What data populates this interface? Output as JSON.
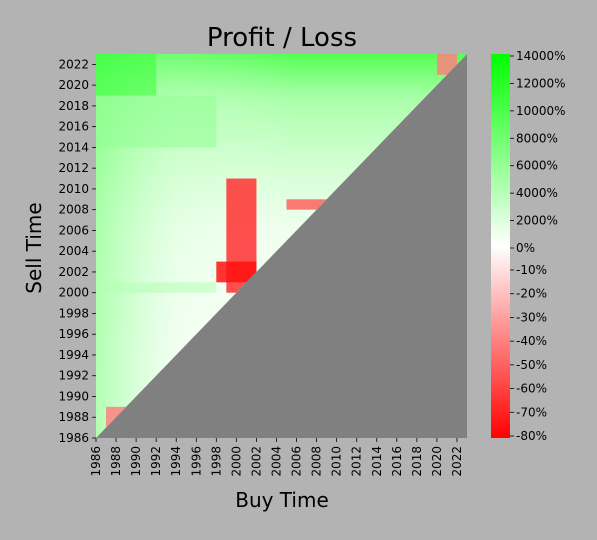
{
  "chart_data": {
    "type": "heatmap",
    "title": "Profit / Loss",
    "xlabel": "Buy Time",
    "ylabel": "Sell Time",
    "x_range": [
      1986,
      2023
    ],
    "y_range": [
      1986,
      2023
    ],
    "x_ticks": [
      "1986",
      "1988",
      "1990",
      "1992",
      "1994",
      "1996",
      "1998",
      "2000",
      "2002",
      "2004",
      "2006",
      "2008",
      "2010",
      "2012",
      "2014",
      "2016",
      "2018",
      "2020",
      "2022"
    ],
    "y_ticks": [
      "1986",
      "1988",
      "1990",
      "1992",
      "1994",
      "1996",
      "1998",
      "2000",
      "2002",
      "2004",
      "2006",
      "2008",
      "2010",
      "2012",
      "2014",
      "2016",
      "2018",
      "2020",
      "2022"
    ],
    "colorbar": {
      "ticks_upper": [
        "14000%",
        "12000%",
        "10000%",
        "8000%",
        "6000%",
        "4000%",
        "2000%",
        "0%"
      ],
      "ticks_lower": [
        "-10%",
        "-20%",
        "-30%",
        "-40%",
        "-50%",
        "-60%",
        "-70%",
        "-80%"
      ],
      "max_percent": 14000,
      "min_percent": -80
    },
    "colors": {
      "background": "#b3b3b3",
      "undefined_region": "#808080",
      "profit_max": "#00ff00",
      "neutral": "#ffffff",
      "loss_max": "#ff0000"
    },
    "regions": [
      {
        "buy": [
          1986,
          1992
        ],
        "sell": [
          2019,
          2023
        ],
        "value_percent": 9000
      },
      {
        "buy": [
          1986,
          1998
        ],
        "sell": [
          2014,
          2019
        ],
        "value_percent": 3000
      },
      {
        "buy": [
          1986,
          1998
        ],
        "sell": [
          2000,
          2001
        ],
        "value_percent": 1500
      },
      {
        "buy": [
          1999,
          2002
        ],
        "sell": [
          2000,
          2011
        ],
        "value_percent": -65
      },
      {
        "buy": [
          1998,
          2002
        ],
        "sell": [
          2001,
          2003
        ],
        "value_percent": -75
      },
      {
        "buy": [
          2005,
          2009
        ],
        "sell": [
          2008,
          2009
        ],
        "value_percent": -50
      },
      {
        "buy": [
          2020,
          2022
        ],
        "sell": [
          2021,
          2023
        ],
        "value_percent": -40
      },
      {
        "buy": [
          1987,
          1989
        ],
        "sell": [
          1987,
          1989
        ],
        "value_percent": -40
      }
    ]
  }
}
